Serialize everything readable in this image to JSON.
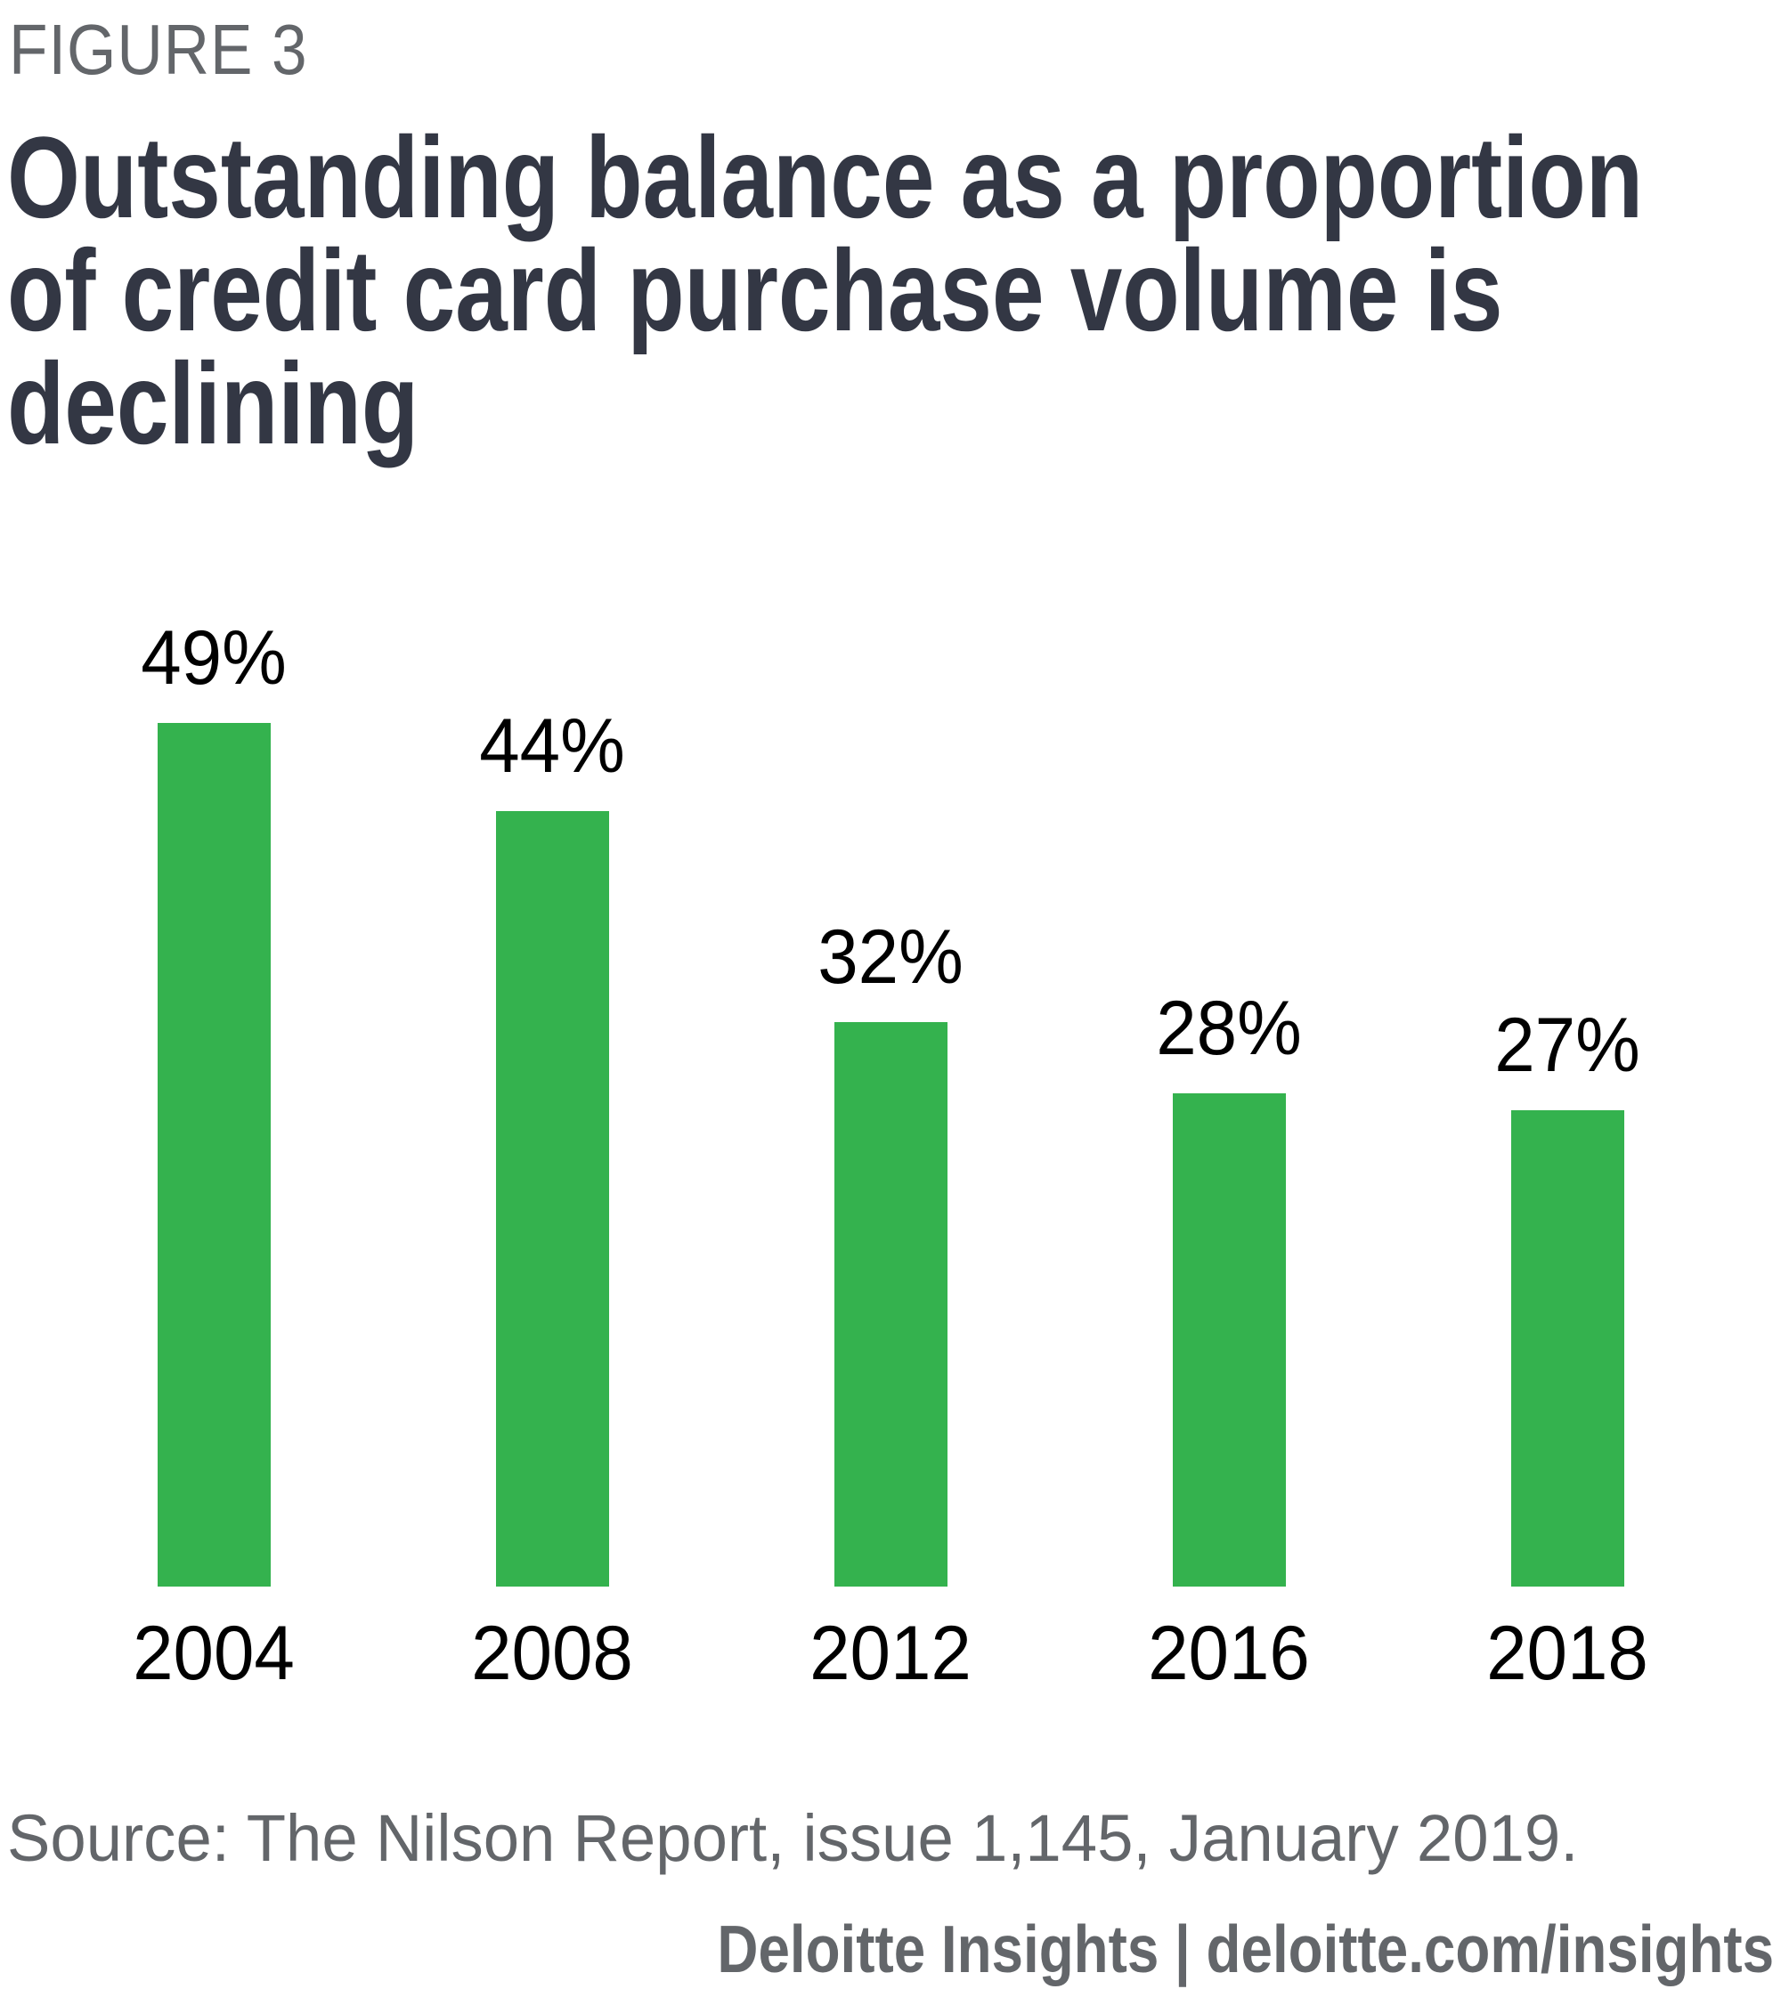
{
  "figure_label": "FIGURE 3",
  "title": "Outstanding balance as a proportion\nof credit card purchase volume is\ndeclining",
  "source_note": "Source: The Nilson Report, issue 1,145, January 2019.",
  "attribution": "Deloitte Insights | deloitte.com/insights",
  "colors": {
    "bar": "#34B24E",
    "title_text": "#333744",
    "muted_text": "#63666A",
    "label_text": "#000000",
    "background": "#ffffff"
  },
  "chart_data": {
    "type": "bar",
    "title": "Outstanding balance as a proportion of credit card purchase volume is declining",
    "categories": [
      "2004",
      "2008",
      "2012",
      "2016",
      "2018"
    ],
    "values": [
      49,
      44,
      32,
      28,
      27
    ],
    "value_labels": [
      "49%",
      "44%",
      "32%",
      "28%",
      "27%"
    ],
    "unit": "percent",
    "xlabel": "",
    "ylabel": "",
    "ylim": [
      0,
      52
    ],
    "grid": false,
    "legend": "none",
    "axis_lines": "none",
    "bar_color": "#34B24E"
  }
}
